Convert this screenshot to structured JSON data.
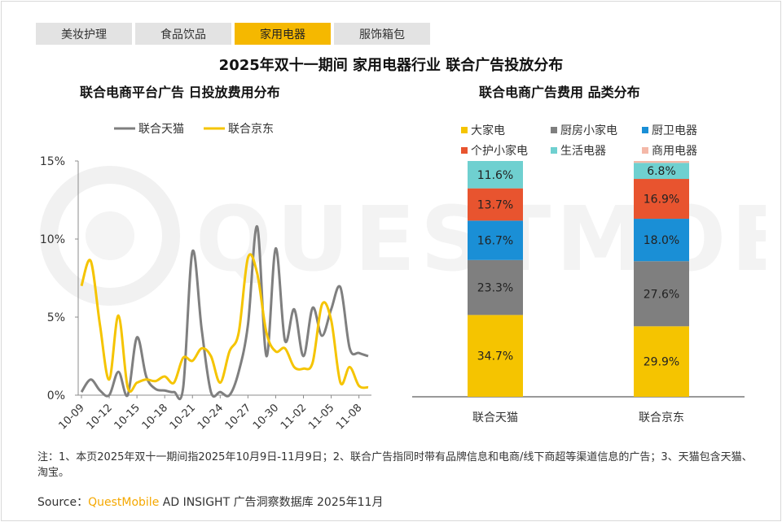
{
  "tabs": [
    "美妆护理",
    "食品饮品",
    "家用电器",
    "服饰箱包"
  ],
  "active_tab": 2,
  "title": "2025年双十一期间 家用电器行业 联合广告投放分布",
  "watermark": "QUESTMOBILE",
  "chart_data": [
    {
      "type": "line",
      "title": "联合电商平台广告 日投放费用分布",
      "x": [
        "10-09",
        "10-10",
        "10-11",
        "10-12",
        "10-13",
        "10-14",
        "10-15",
        "10-16",
        "10-17",
        "10-18",
        "10-19",
        "10-20",
        "10-21",
        "10-22",
        "10-23",
        "10-24",
        "10-25",
        "10-26",
        "10-27",
        "10-28",
        "10-29",
        "10-30",
        "10-31",
        "11-01",
        "11-02",
        "11-03",
        "11-04",
        "11-05",
        "11-06",
        "11-07",
        "11-08",
        "11-09"
      ],
      "tick_labels": [
        "10-09",
        "10-12",
        "10-15",
        "10-18",
        "10-21",
        "10-24",
        "10-27",
        "10-30",
        "11-02",
        "11-05",
        "11-08"
      ],
      "yticks": [
        "0%",
        "5%",
        "10%",
        "15%"
      ],
      "ylim": [
        0,
        15
      ],
      "legend_position": "top",
      "series": [
        {
          "name": "联合天猫",
          "color": "#7f7f7f",
          "values": [
            0.2,
            1.0,
            0.3,
            0.0,
            1.5,
            0.0,
            3.7,
            1.2,
            0.4,
            0.3,
            0.2,
            0.5,
            9.2,
            4.2,
            0.2,
            0.2,
            0.0,
            1.5,
            4.5,
            10.8,
            2.5,
            9.4,
            3.5,
            5.5,
            2.5,
            5.6,
            3.8,
            5.5,
            6.9,
            3.0,
            2.7,
            2.5
          ]
        },
        {
          "name": "联合京东",
          "color": "#f5c400",
          "values": [
            7.0,
            8.6,
            4.5,
            1.0,
            5.1,
            0.5,
            0.8,
            1.0,
            0.9,
            1.2,
            0.8,
            2.4,
            2.2,
            3.0,
            2.5,
            0.8,
            2.8,
            4.0,
            8.8,
            7.8,
            4.0,
            2.8,
            3.0,
            1.8,
            1.7,
            2.1,
            5.8,
            4.8,
            0.8,
            1.8,
            0.6,
            0.5
          ]
        }
      ]
    },
    {
      "type": "bar",
      "stacked": true,
      "title": "联合电商广告费用 品类分布",
      "categories": [
        "联合天猫",
        "联合京东"
      ],
      "legend_position": "top",
      "series": [
        {
          "name": "大家电",
          "color": "#f5c400",
          "values": [
            34.7,
            29.9
          ],
          "labels": [
            "34.7%",
            "29.9%"
          ]
        },
        {
          "name": "厨房小家电",
          "color": "#7f7f7f",
          "values": [
            23.3,
            27.6
          ],
          "labels": [
            "23.3%",
            "27.6%"
          ]
        },
        {
          "name": "厨卫电器",
          "color": "#1a8fd6",
          "values": [
            16.7,
            18.0
          ],
          "labels": [
            "16.7%",
            "18.0%"
          ]
        },
        {
          "name": "个护小家电",
          "color": "#e8542f",
          "values": [
            13.7,
            16.9
          ],
          "labels": [
            "13.7%",
            "16.9%"
          ]
        },
        {
          "name": "生活电器",
          "color": "#6fd0d0",
          "values": [
            11.6,
            6.8
          ],
          "labels": [
            "11.6%",
            "6.8%"
          ]
        },
        {
          "name": "商用电器",
          "color": "#f4b8a8",
          "values": [
            0.0,
            0.8
          ],
          "labels": [
            "",
            ""
          ]
        }
      ]
    }
  ],
  "note": "注：1、本页2025年双十一期间指2025年10月9日-11月9日；2、联合广告指同时带有品牌信息和电商/线下商超等渠道信息的广告；3、天猫包含天猫、淘宝。",
  "source": {
    "prefix": "Source：",
    "brand": "QuestMobile",
    "rest": " AD INSIGHT 广告洞察数据库 2025年11月"
  }
}
